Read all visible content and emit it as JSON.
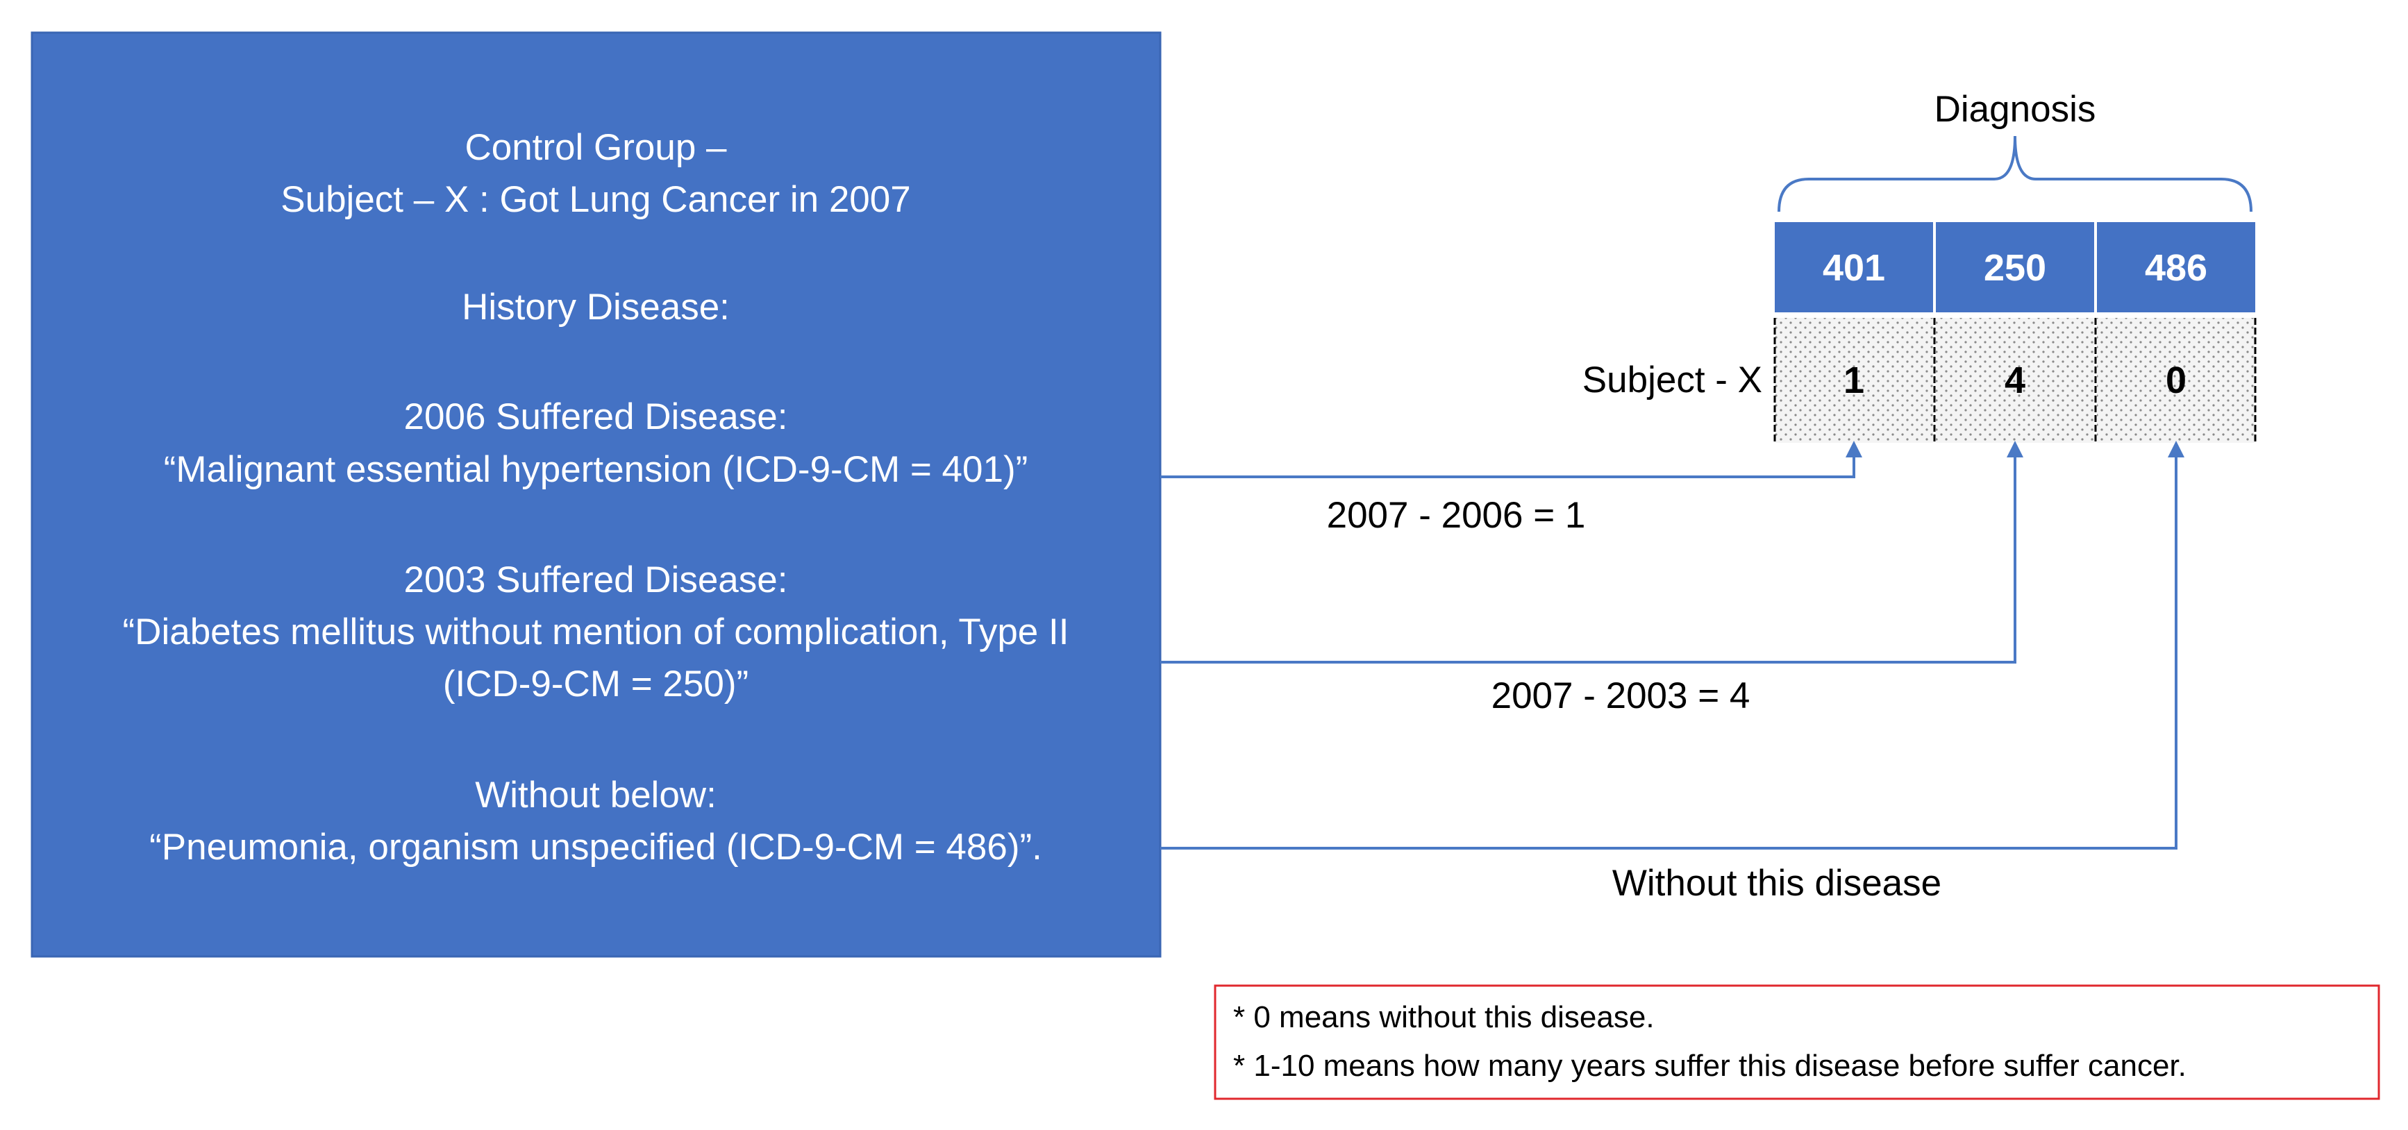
{
  "colors": {
    "box_fill": "#4472c4",
    "header_fill": "#4472c4",
    "line": "#4a79c5",
    "note_border": "#e0282e",
    "cell_fill": "#f5f5f5"
  },
  "control_box": {
    "title": "Control Group –",
    "subject_line": "Subject – X : Got Lung Cancer in 2007",
    "history_heading": "History Disease:",
    "disease_2006_heading": "2006 Suffered Disease:",
    "disease_2006_text": "“Malignant essential hypertension (ICD-9-CM = 401)”",
    "disease_2003_heading": "2003 Suffered Disease:",
    "disease_2003_text_line1": "“Diabetes mellitus without mention of complication, Type II",
    "disease_2003_text_line2": "(ICD-9-CM = 250)”",
    "without_heading": "Without below:",
    "without_text": "“Pneumonia, organism unspecified (ICD-9-CM = 486)”."
  },
  "diagnosis": {
    "label": "Diagnosis",
    "codes": [
      "401",
      "250",
      "486"
    ],
    "row_label": "Subject - X",
    "values": [
      "1",
      "4",
      "0"
    ]
  },
  "connectors": {
    "label_401": "2007 - 2006 = 1",
    "label_250": "2007 - 2003 = 4",
    "label_486": "Without this disease"
  },
  "note": {
    "line1": "* 0 means without this disease.",
    "line2": "* 1-10 means how many years suffer this disease before suffer cancer."
  }
}
